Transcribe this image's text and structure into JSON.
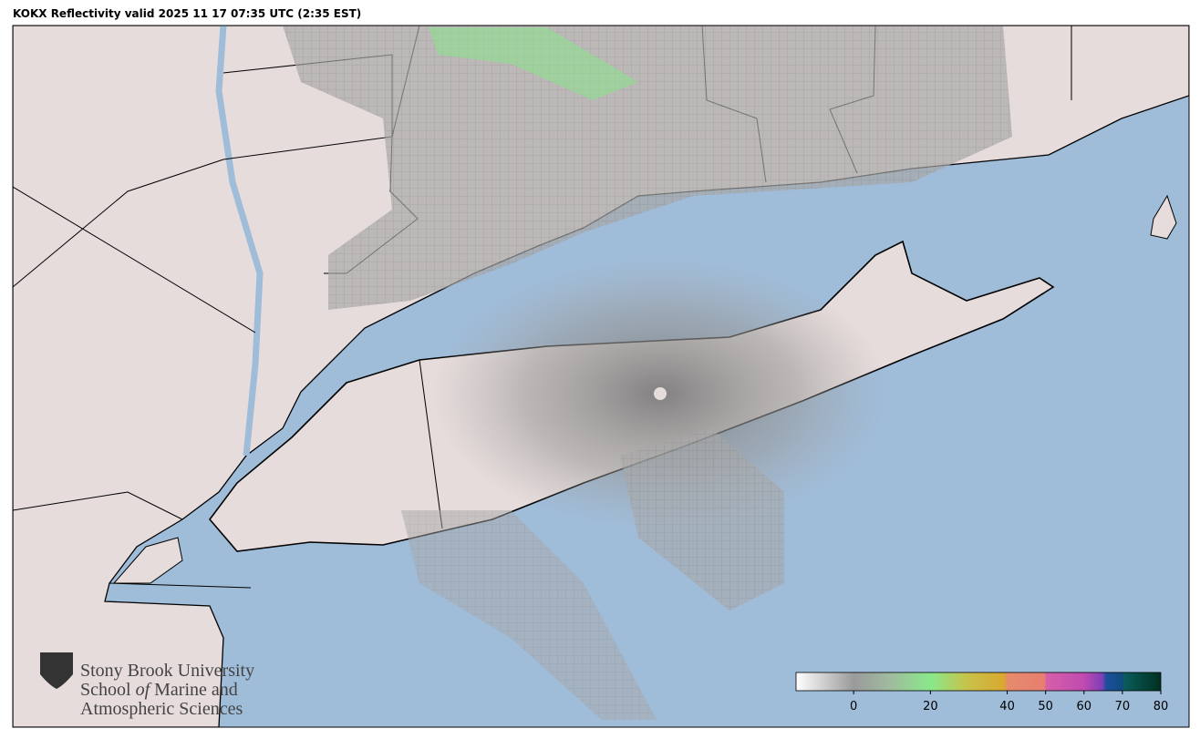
{
  "title": "KOKX Reflectivity valid 2025 11 17 07:35 UTC (2:35 EST)",
  "colorbar": {
    "range": [
      -15,
      80
    ],
    "ticks": [
      0,
      20,
      40,
      50,
      60,
      70,
      80
    ]
  },
  "logo": {
    "line1": "Stony Brook University",
    "line2": [
      "School",
      "of",
      "Marine and"
    ],
    "line3": "Atmospheric Sciences"
  }
}
